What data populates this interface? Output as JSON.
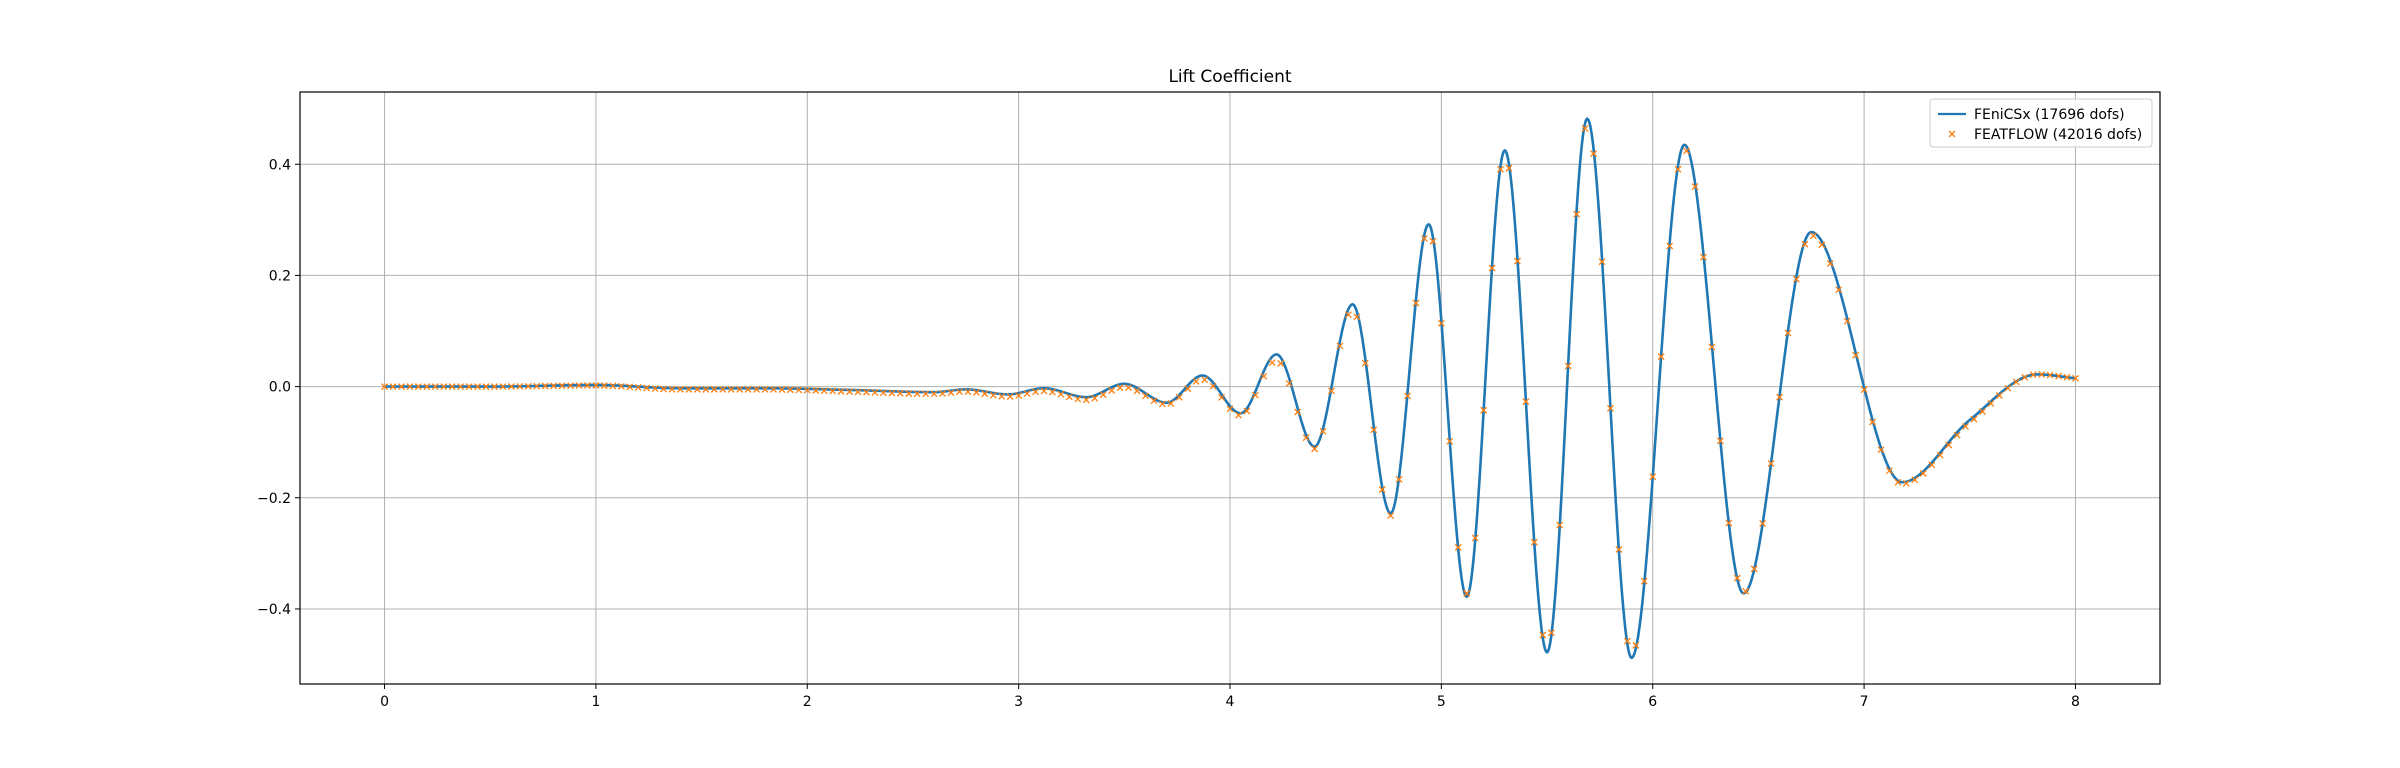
{
  "chart_data": {
    "type": "line",
    "title": "Lift Coefficient",
    "xlabel": "",
    "ylabel": "",
    "xlim": [
      -0.4,
      8.4
    ],
    "ylim": [
      -0.535,
      0.53
    ],
    "xticks": [
      0,
      1,
      2,
      3,
      4,
      5,
      6,
      7,
      8
    ],
    "yticks": [
      -0.4,
      -0.2,
      0.0,
      0.2,
      0.4
    ],
    "xtick_labels": [
      "0",
      "1",
      "2",
      "3",
      "4",
      "5",
      "6",
      "7",
      "8"
    ],
    "ytick_labels": [
      "−0.4",
      "−0.2",
      "0.0",
      "0.2",
      "0.4"
    ],
    "grid": true,
    "legend_location": "upper right",
    "series": [
      {
        "name": "FEniCSx (17696 dofs)",
        "style": "line",
        "color": "#1f77b4",
        "x": [
          0,
          0.5,
          1.0,
          1.4,
          1.8,
          2.2,
          2.6,
          2.75,
          2.95,
          3.12,
          3.32,
          3.5,
          3.7,
          3.87,
          4.05,
          4.22,
          4.4,
          4.58,
          4.76,
          4.94,
          5.12,
          5.3,
          5.5,
          5.69,
          5.9,
          6.15,
          6.43,
          6.75,
          7.18,
          7.5,
          7.82,
          8.0
        ],
        "y": [
          0.0,
          0.0,
          0.003,
          -0.003,
          -0.003,
          -0.006,
          -0.01,
          -0.005,
          -0.014,
          -0.003,
          -0.019,
          0.005,
          -0.029,
          0.02,
          -0.048,
          0.058,
          -0.108,
          0.148,
          -0.228,
          0.292,
          -0.378,
          0.425,
          -0.478,
          0.482,
          -0.488,
          0.435,
          -0.372,
          0.278,
          -0.172,
          -0.06,
          0.022,
          0.015
        ]
      },
      {
        "name": "FEATFLOW (42016 dofs)",
        "style": "markers",
        "marker": "x",
        "color": "#ff7f0e",
        "x": [
          0,
          0.5,
          1.0,
          1.4,
          1.8,
          2.2,
          2.6,
          2.75,
          2.95,
          3.12,
          3.32,
          3.5,
          3.7,
          3.87,
          4.05,
          4.22,
          4.4,
          4.58,
          4.76,
          4.94,
          5.12,
          5.3,
          5.5,
          5.69,
          5.9,
          6.15,
          6.43,
          6.75,
          7.18,
          7.5,
          7.82,
          8.0
        ],
        "y": [
          0.0,
          0.0,
          0.002,
          -0.005,
          -0.005,
          -0.009,
          -0.013,
          -0.009,
          -0.018,
          -0.008,
          -0.024,
          -0.001,
          -0.032,
          0.013,
          -0.052,
          0.047,
          -0.112,
          0.138,
          -0.232,
          0.284,
          -0.372,
          0.418,
          -0.472,
          0.472,
          -0.482,
          0.427,
          -0.37,
          0.272,
          -0.175,
          -0.065,
          0.022,
          0.015
        ]
      }
    ]
  }
}
